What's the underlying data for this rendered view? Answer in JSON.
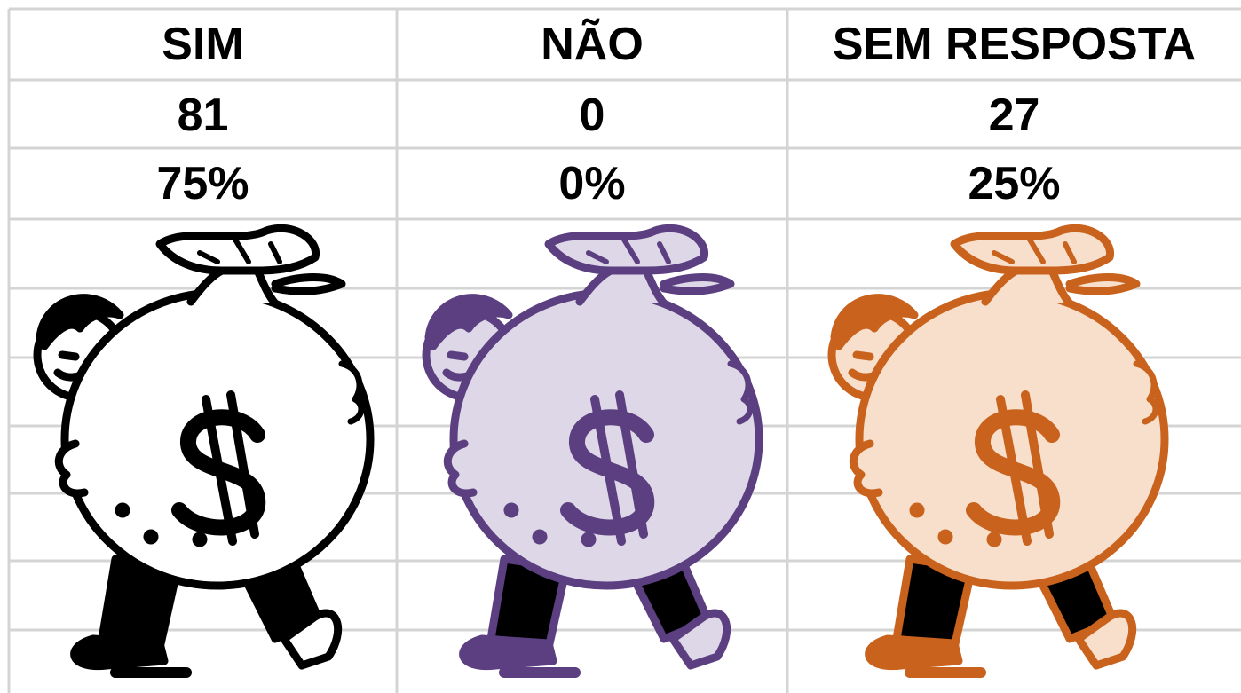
{
  "table": {
    "header": [
      "SIM",
      "NÃO",
      "SEM RESPOSTA"
    ],
    "rows": [
      [
        "81",
        "0",
        "27"
      ],
      [
        "75%",
        "0%",
        "25%"
      ]
    ]
  }
}
